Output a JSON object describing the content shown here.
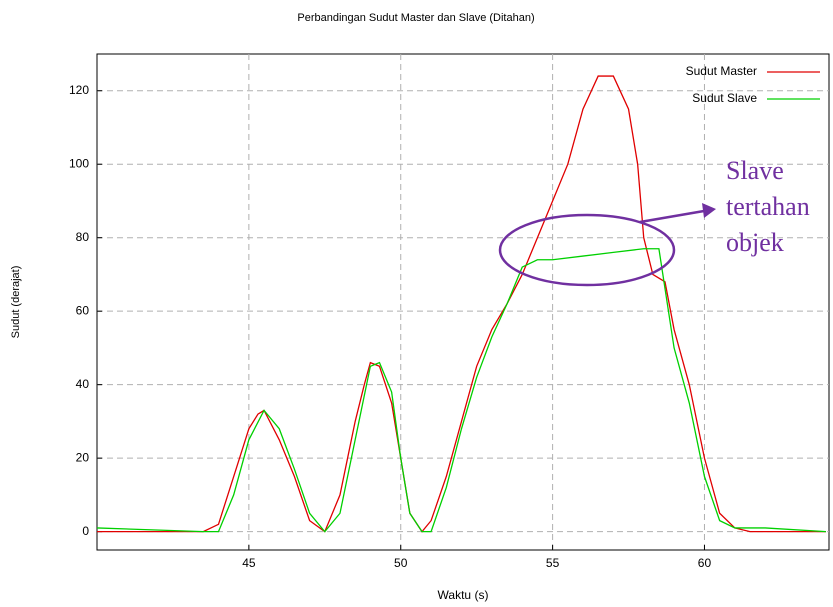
{
  "chart_data": {
    "type": "line",
    "title": "Perbandingan Sudut Master dan Slave (Ditahan)",
    "x_label": "Waktu (s)",
    "y_label": "Sudut (derajat)",
    "xlim": [
      40,
      64.1
    ],
    "ylim": [
      -5,
      130
    ],
    "xticks": [
      45,
      50,
      55,
      60
    ],
    "yticks": [
      0,
      20,
      40,
      60,
      80,
      100,
      120
    ],
    "grid": true,
    "legend": "upper right",
    "annotation_lines": [
      "Slave",
      "tertahan",
      "objek"
    ],
    "series": [
      {
        "name": "Sudut Master",
        "color": "#e00000",
        "x": [
          40,
          43.5,
          44,
          44.5,
          45,
          45.3,
          45.5,
          46,
          46.5,
          47,
          47.5,
          48,
          48.5,
          48.8,
          49,
          49.3,
          49.7,
          50,
          50.3,
          50.7,
          51,
          51.5,
          52,
          52.5,
          53,
          53.5,
          54,
          54.5,
          55,
          55.5,
          56,
          56.5,
          57,
          57.5,
          57.8,
          58,
          58.3,
          58.7,
          59,
          59.5,
          60,
          60.5,
          61,
          61.5,
          64
        ],
        "values": [
          0,
          0,
          2,
          15,
          28,
          32,
          33,
          25,
          15,
          3,
          0,
          10,
          30,
          40,
          46,
          45,
          35,
          20,
          5,
          0,
          3,
          15,
          30,
          45,
          55,
          62,
          70,
          80,
          90,
          100,
          115,
          124,
          124,
          115,
          100,
          80,
          70,
          68,
          55,
          40,
          20,
          5,
          1,
          0,
          0
        ]
      },
      {
        "name": "Sudut Slave",
        "color": "#00d000",
        "x": [
          40,
          43.5,
          44,
          44.5,
          45,
          45.5,
          46,
          46.5,
          47,
          47.5,
          48,
          48.5,
          49,
          49.3,
          49.7,
          50,
          50.3,
          50.7,
          51,
          51.5,
          52,
          52.5,
          53,
          53.5,
          54,
          54.5,
          55,
          56,
          57,
          58,
          58.5,
          59,
          59.5,
          60,
          60.5,
          61,
          62,
          64
        ],
        "values": [
          1,
          0,
          0,
          10,
          25,
          33,
          28,
          17,
          5,
          0,
          5,
          25,
          45,
          46,
          38,
          20,
          5,
          0,
          0,
          12,
          28,
          42,
          53,
          62,
          72,
          74,
          74,
          75,
          76,
          77,
          77,
          50,
          35,
          15,
          3,
          1,
          1,
          0
        ]
      }
    ]
  }
}
